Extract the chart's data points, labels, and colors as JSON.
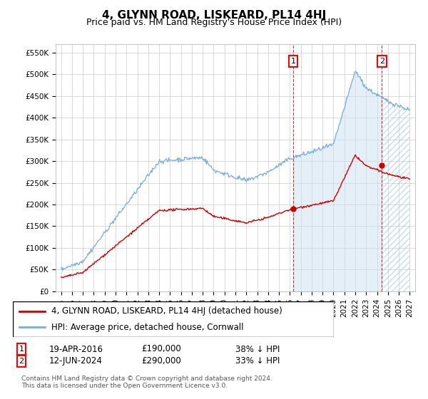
{
  "title": "4, GLYNN ROAD, LISKEARD, PL14 4HJ",
  "subtitle": "Price paid vs. HM Land Registry's House Price Index (HPI)",
  "ylabel_ticks": [
    "£0",
    "£50K",
    "£100K",
    "£150K",
    "£200K",
    "£250K",
    "£300K",
    "£350K",
    "£400K",
    "£450K",
    "£500K",
    "£550K"
  ],
  "ytick_values": [
    0,
    50000,
    100000,
    150000,
    200000,
    250000,
    300000,
    350000,
    400000,
    450000,
    500000,
    550000
  ],
  "ylim": [
    0,
    570000
  ],
  "year_start": 1995,
  "year_end": 2027,
  "hpi_color": "#7aaddb",
  "price_color": "#cc0000",
  "grid_color": "#cccccc",
  "background_color": "#ffffff",
  "sale1_date": "19-APR-2016",
  "sale1_price": 190000,
  "sale1_label": "38% ↓ HPI",
  "sale1_year": 2016.3,
  "sale2_date": "12-JUN-2024",
  "sale2_price": 290000,
  "sale2_label": "33% ↓ HPI",
  "sale2_year": 2024.45,
  "legend_line1": "4, GLYNN ROAD, LISKEARD, PL14 4HJ (detached house)",
  "legend_line2": "HPI: Average price, detached house, Cornwall",
  "footnote": "Contains HM Land Registry data © Crown copyright and database right 2024.\nThis data is licensed under the Open Government Licence v3.0.",
  "title_fontsize": 11,
  "subtitle_fontsize": 9,
  "axis_fontsize": 7.5,
  "legend_fontsize": 8.5
}
